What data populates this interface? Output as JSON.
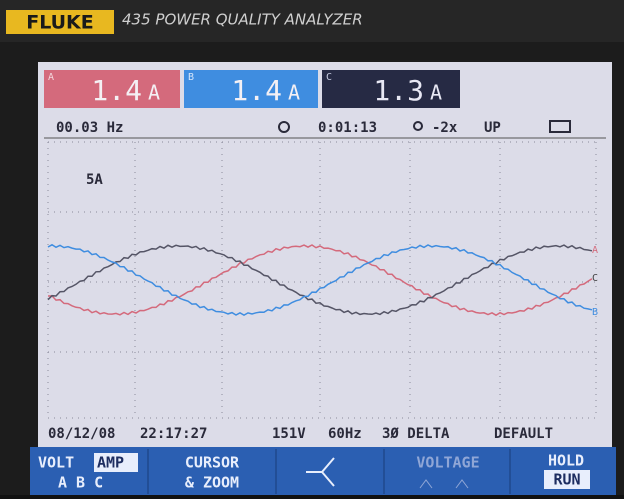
{
  "header": {
    "brand": "FLUKE",
    "model": "435 POWER QUALITY ANALYZER"
  },
  "readings": [
    {
      "phase": "A",
      "value": "1.4",
      "unit": "A"
    },
    {
      "phase": "B",
      "value": "1.4",
      "unit": "A"
    },
    {
      "phase": "C",
      "value": "1.3",
      "unit": "A"
    }
  ],
  "status_top": {
    "frequency": "00.03 Hz",
    "timer": "0:01:13",
    "zoom": "-2x",
    "mode": "UP"
  },
  "scale": "5A",
  "trace_labels": [
    "A",
    "C",
    "B"
  ],
  "status_bottom": {
    "date": "08/12/08",
    "time": "22:17:27",
    "voltage": "151V",
    "frequency": "60Hz",
    "config": "3Ø DELTA",
    "profile": "DEFAULT"
  },
  "softkeys": [
    {
      "line1": "VOLT",
      "line1_selected": "AMP",
      "line2": "A B C"
    },
    {
      "line1": "CURSOR",
      "line2": "& ZOOM"
    },
    {
      "line1": "VOLTAGE"
    },
    {
      "line1": "HOLD",
      "line2_selected": "RUN"
    }
  ]
}
